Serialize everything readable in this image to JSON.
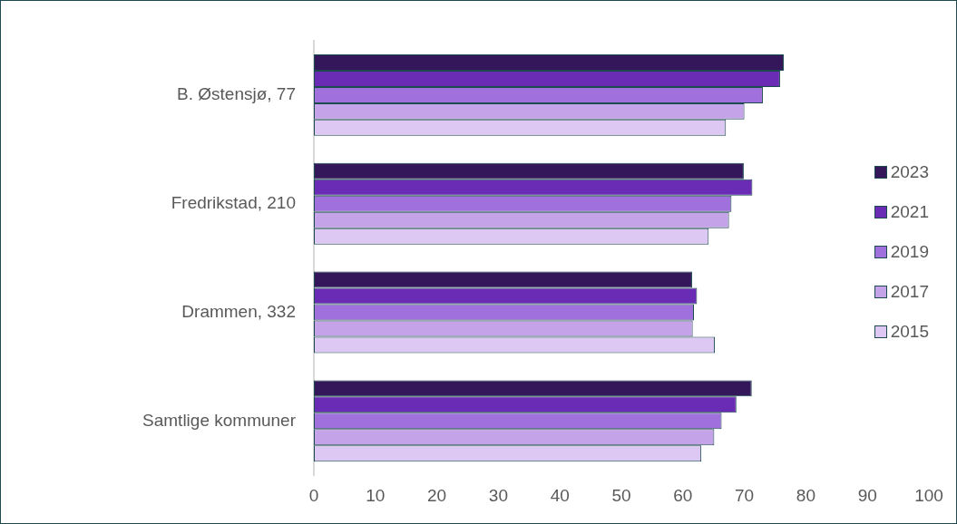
{
  "chart_data": {
    "type": "bar",
    "orientation": "horizontal",
    "categories": [
      "B. Østensjø, 77",
      "Fredrikstad, 210",
      "Drammen, 332",
      "Samtlige kommuner"
    ],
    "series": [
      {
        "name": "2023",
        "color": "#33175a",
        "values": [
          76.4,
          69.9,
          61.5,
          71.2
        ]
      },
      {
        "name": "2021",
        "color": "#6a2bb5",
        "values": [
          75.8,
          71.3,
          62.3,
          68.7
        ]
      },
      {
        "name": "2019",
        "color": "#a070dc",
        "values": [
          73.0,
          67.9,
          61.8,
          66.3
        ]
      },
      {
        "name": "2017",
        "color": "#c4a3e8",
        "values": [
          70.0,
          67.5,
          61.6,
          65.1
        ]
      },
      {
        "name": "2015",
        "color": "#dcc8f2",
        "values": [
          67.0,
          64.2,
          65.2,
          63.0
        ]
      }
    ],
    "xlim": [
      0,
      100
    ],
    "xticks": [
      0,
      10,
      20,
      30,
      40,
      50,
      60,
      70,
      80,
      90,
      100
    ],
    "grid": false,
    "legend": "right"
  }
}
